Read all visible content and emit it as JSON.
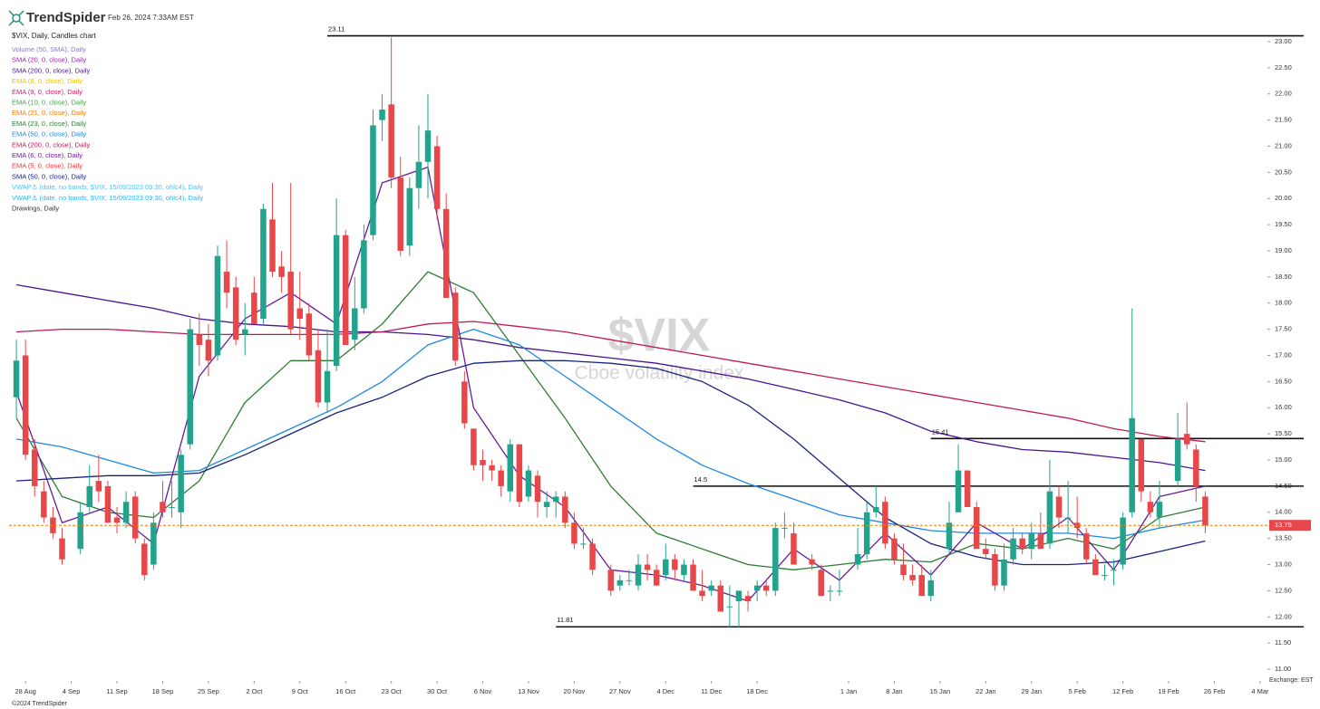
{
  "header": {
    "brand": "TrendSpider",
    "timestamp": "Feb 26, 2024 7:33AM EST",
    "footer": "©2024 TrendSpider",
    "exchange": "Exchange: EST"
  },
  "chart_data": {
    "type": "candlestick",
    "title": "$VIX, Daily, Candles chart",
    "watermark": "$VIX",
    "watermark_subtitle": "Cboe volatility index",
    "up_color": "#22a38c",
    "down_color": "#e8474a",
    "xlim": [
      -0.8,
      136.8
    ],
    "ylim": [
      10.9,
      23.15
    ],
    "grid": false,
    "xticks": [
      {
        "value": 1,
        "label": "28 Aug"
      },
      {
        "value": 6,
        "label": "4 Sep"
      },
      {
        "value": 11,
        "label": "11 Sep"
      },
      {
        "value": 16,
        "label": "18 Sep"
      },
      {
        "value": 21,
        "label": "25 Sep"
      },
      {
        "value": 26,
        "label": "2 Oct"
      },
      {
        "value": 31,
        "label": "9 Oct"
      },
      {
        "value": 36,
        "label": "16 Oct"
      },
      {
        "value": 41,
        "label": "23 Oct"
      },
      {
        "value": 46,
        "label": "30 Oct"
      },
      {
        "value": 51,
        "label": "6 Nov"
      },
      {
        "value": 56,
        "label": "13 Nov"
      },
      {
        "value": 61,
        "label": "20 Nov"
      },
      {
        "value": 66,
        "label": "27 Nov"
      },
      {
        "value": 71,
        "label": "4 Dec"
      },
      {
        "value": 76,
        "label": "11 Dec"
      },
      {
        "value": 81,
        "label": "18 Dec"
      },
      {
        "value": 91,
        "label": "1 Jan"
      },
      {
        "value": 96,
        "label": "8 Jan"
      },
      {
        "value": 101,
        "label": "15 Jan"
      },
      {
        "value": 106,
        "label": "22 Jan"
      },
      {
        "value": 111,
        "label": "29 Jan"
      },
      {
        "value": 116,
        "label": "5 Feb"
      },
      {
        "value": 121,
        "label": "12 Feb"
      },
      {
        "value": 126,
        "label": "19 Feb"
      },
      {
        "value": 131,
        "label": "26 Feb"
      },
      {
        "value": 136,
        "label": "4 Mar"
      }
    ],
    "yticks": [
      {
        "value": 11,
        "label": "11.00"
      },
      {
        "value": 11.5,
        "label": "11.50"
      },
      {
        "value": 12,
        "label": "12.00"
      },
      {
        "value": 12.5,
        "label": "12.50"
      },
      {
        "value": 13,
        "label": "13.00"
      },
      {
        "value": 13.5,
        "label": "13.50"
      },
      {
        "value": 14,
        "label": "14.00"
      },
      {
        "value": 14.5,
        "label": "14.50"
      },
      {
        "value": 15,
        "label": "15.00"
      },
      {
        "value": 15.5,
        "label": "15.50"
      },
      {
        "value": 16,
        "label": "16.00"
      },
      {
        "value": 16.5,
        "label": "16.50"
      },
      {
        "value": 17,
        "label": "17.00"
      },
      {
        "value": 17.5,
        "label": "17.50"
      },
      {
        "value": 18,
        "label": "18.00"
      },
      {
        "value": 18.5,
        "label": "18.50"
      },
      {
        "value": 19,
        "label": "19.00"
      },
      {
        "value": 19.5,
        "label": "19.50"
      },
      {
        "value": 20,
        "label": "20.00"
      },
      {
        "value": 20.5,
        "label": "20.50"
      },
      {
        "value": 21,
        "label": "21.00"
      },
      {
        "value": 21.5,
        "label": "21.50"
      },
      {
        "value": 22,
        "label": "22.00"
      },
      {
        "value": 22.5,
        "label": "22.50"
      },
      {
        "value": 23,
        "label": "23.00"
      }
    ],
    "x": [
      0,
      1,
      2,
      3,
      4,
      5,
      7,
      8,
      9,
      10,
      11,
      12,
      13,
      14,
      15,
      16,
      17,
      18,
      19,
      20,
      21,
      22,
      23,
      24,
      25,
      26,
      27,
      28,
      29,
      30,
      31,
      32,
      33,
      34,
      35,
      36,
      37,
      38,
      39,
      40,
      41,
      42,
      43,
      44,
      45,
      46,
      47,
      48,
      49,
      50,
      51,
      52,
      53,
      54,
      55,
      56,
      57,
      58,
      59,
      60,
      61,
      62,
      63,
      65,
      66,
      67,
      68,
      69,
      70,
      71,
      72,
      73,
      74,
      75,
      76,
      77,
      78,
      79,
      80,
      81,
      82,
      83,
      84,
      85,
      87,
      88,
      89,
      90,
      92,
      93,
      94,
      95,
      96,
      97,
      98,
      99,
      100,
      102,
      103,
      104,
      105,
      106,
      107,
      108,
      109,
      110,
      111,
      112,
      113,
      114,
      115,
      116,
      117,
      118,
      119,
      120,
      121,
      122,
      123,
      124,
      125,
      127,
      128,
      129,
      130
    ],
    "open": [
      16.2,
      17.0,
      15.2,
      14.4,
      13.9,
      13.5,
      13.3,
      14.1,
      14.6,
      14.5,
      13.9,
      13.8,
      14.3,
      13.4,
      13.0,
      14.2,
      14.1,
      14.0,
      15.3,
      17.4,
      17.3,
      17.0,
      18.6,
      18.3,
      17.4,
      18.2,
      17.7,
      19.6,
      18.7,
      18.6,
      17.9,
      17.8,
      17.1,
      16.1,
      16.8,
      19.3,
      17.3,
      17.9,
      19.3,
      21.5,
      21.8,
      20.4,
      19.1,
      20.2,
      20.7,
      21.0,
      19.8,
      18.2,
      16.5,
      15.6,
      15.0,
      14.9,
      14.8,
      14.4,
      15.3,
      14.3,
      14.7,
      14.1,
      14.2,
      14.3,
      13.8,
      13.4,
      13.4,
      12.9,
      12.6,
      12.7,
      12.6,
      13.0,
      12.9,
      12.8,
      13.1,
      12.8,
      13.0,
      12.5,
      12.5,
      12.6,
      12.2,
      12.3,
      12.4,
      12.5,
      12.6,
      12.5,
      13.7,
      13.6,
      13.1,
      12.9,
      12.5,
      12.5,
      13.0,
      13.2,
      14.0,
      14.2,
      13.5,
      13.0,
      12.8,
      12.8,
      12.4,
      13.3,
      14.0,
      14.8,
      14.1,
      13.3,
      13.2,
      12.6,
      13.1,
      13.5,
      13.3,
      13.6,
      13.4,
      14.3,
      13.9,
      13.8,
      13.6,
      13.1,
      12.8,
      12.9,
      13.0,
      14.0,
      15.4,
      14.2,
      13.9,
      14.6,
      15.5,
      15.2,
      14.3
    ],
    "high": [
      17.3,
      17.3,
      15.4,
      14.6,
      14.1,
      13.7,
      14.2,
      14.9,
      15.1,
      14.6,
      14.1,
      14.4,
      14.4,
      13.5,
      14.0,
      14.6,
      14.6,
      15.2,
      17.7,
      17.8,
      17.6,
      19.1,
      19.2,
      18.5,
      18.0,
      18.5,
      19.9,
      20.3,
      19.0,
      20.3,
      18.6,
      18.0,
      17.5,
      17.5,
      20.0,
      19.4,
      18.5,
      19.5,
      21.7,
      22.0,
      23.08,
      20.8,
      20.4,
      21.4,
      22.0,
      21.2,
      20.1,
      18.3,
      16.7,
      15.6,
      15.2,
      15.0,
      14.9,
      15.4,
      15.3,
      14.9,
      14.8,
      14.4,
      14.4,
      14.4,
      14.0,
      13.7,
      13.5,
      13.0,
      12.8,
      12.9,
      13.2,
      13.2,
      13.0,
      13.4,
      13.2,
      13.1,
      13.1,
      12.9,
      12.7,
      12.7,
      12.6,
      12.5,
      12.5,
      12.7,
      12.7,
      13.8,
      14.0,
      13.8,
      13.2,
      13.0,
      12.6,
      12.9,
      13.7,
      14.2,
      14.5,
      14.3,
      13.6,
      13.4,
      13.0,
      13.0,
      12.9,
      14.2,
      15.3,
      14.8,
      14.2,
      13.5,
      13.3,
      13.4,
      13.7,
      13.6,
      13.8,
      14.0,
      15.0,
      14.5,
      14.6,
      14.3,
      13.7,
      13.2,
      13.0,
      13.1,
      14.0,
      17.9,
      15.4,
      14.4,
      14.6,
      15.9,
      16.1,
      15.3,
      14.4
    ],
    "low": [
      15.8,
      15.0,
      14.3,
      13.8,
      13.5,
      13.0,
      13.2,
      14.0,
      14.2,
      13.8,
      13.6,
      13.7,
      13.4,
      12.7,
      12.9,
      13.9,
      13.9,
      13.7,
      15.2,
      16.8,
      16.6,
      16.9,
      17.9,
      17.2,
      17.0,
      17.6,
      17.6,
      18.5,
      18.2,
      17.4,
      17.3,
      16.9,
      16.0,
      15.9,
      16.7,
      17.2,
      17.1,
      17.8,
      19.2,
      21.1,
      20.2,
      18.9,
      18.9,
      19.8,
      20.0,
      19.6,
      18.1,
      16.8,
      15.6,
      14.8,
      14.6,
      14.6,
      14.3,
      14.2,
      14.1,
      14.2,
      13.9,
      13.9,
      13.9,
      13.7,
      13.3,
      13.3,
      12.8,
      12.4,
      12.5,
      12.6,
      12.5,
      12.7,
      12.6,
      12.7,
      12.7,
      12.7,
      12.5,
      12.3,
      12.4,
      12.1,
      11.8,
      11.8,
      12.1,
      12.3,
      12.4,
      12.4,
      13.5,
      13.0,
      12.9,
      12.4,
      12.3,
      12.4,
      12.9,
      13.1,
      13.9,
      13.3,
      13.0,
      12.7,
      12.6,
      12.4,
      12.3,
      13.2,
      14.0,
      14.1,
      13.3,
      13.1,
      12.5,
      12.5,
      13.0,
      13.2,
      13.1,
      13.3,
      13.3,
      13.7,
      13.6,
      13.5,
      13.0,
      12.8,
      12.7,
      12.6,
      12.9,
      13.9,
      14.2,
      13.9,
      13.7,
      14.5,
      15.2,
      14.2,
      13.6
    ],
    "close": [
      16.9,
      15.1,
      14.5,
      13.9,
      13.6,
      13.1,
      14.0,
      14.5,
      14.4,
      13.8,
      13.8,
      14.2,
      13.5,
      12.8,
      13.8,
      14.0,
      14.1,
      15.1,
      17.5,
      17.2,
      16.9,
      18.9,
      18.2,
      17.3,
      17.5,
      17.6,
      19.8,
      18.6,
      18.5,
      17.5,
      17.7,
      17.0,
      16.1,
      16.7,
      19.3,
      17.2,
      17.9,
      19.2,
      21.4,
      21.7,
      20.4,
      19.0,
      20.2,
      20.7,
      21.3,
      19.8,
      18.1,
      16.9,
      15.7,
      14.9,
      14.9,
      14.8,
      14.5,
      15.3,
      14.2,
      14.8,
      14.2,
      14.2,
      14.3,
      13.8,
      13.4,
      13.4,
      12.9,
      12.5,
      12.7,
      12.7,
      13.0,
      12.9,
      12.6,
      13.1,
      12.9,
      13.0,
      12.5,
      12.4,
      12.6,
      12.1,
      12.2,
      12.5,
      12.3,
      12.6,
      12.5,
      13.7,
      13.7,
      13.0,
      13.0,
      12.4,
      12.5,
      12.5,
      13.2,
      14.0,
      14.1,
      13.4,
      13.1,
      12.8,
      12.7,
      12.4,
      12.7,
      13.8,
      14.8,
      14.1,
      13.3,
      13.2,
      12.6,
      13.1,
      13.5,
      13.3,
      13.6,
      13.3,
      14.4,
      13.9,
      13.9,
      13.7,
      13.1,
      12.8,
      12.8,
      12.9,
      13.9,
      15.8,
      14.4,
      14.0,
      14.2,
      15.4,
      15.3,
      14.5,
      13.75
    ],
    "last_price_color": "#f57c00",
    "levels": [
      {
        "value": 23.11,
        "start": 34
      },
      {
        "value": 15.41,
        "start": 100
      },
      {
        "value": 14.5,
        "start": 74
      },
      {
        "value": 11.81,
        "start": 59
      }
    ],
    "series": [
      {
        "name": "Volume (50, SMA), Daily",
        "color": "#8e7cc3"
      },
      {
        "name": "SMA (20, 0, close), Daily",
        "color": "#9c27b0"
      },
      {
        "name": "SMA (200, 0, close), Daily",
        "color": "#4a148c",
        "x": [
          0,
          5,
          10,
          15,
          20,
          25,
          30,
          35,
          40,
          45,
          50,
          55,
          60,
          65,
          70,
          75,
          80,
          85,
          90,
          95,
          100,
          105,
          110,
          115,
          120,
          125,
          130
        ],
        "values": [
          18.35,
          18.2,
          18.05,
          17.9,
          17.7,
          17.6,
          17.55,
          17.45,
          17.45,
          17.4,
          17.3,
          17.15,
          17.05,
          16.95,
          16.85,
          16.7,
          16.55,
          16.35,
          16.15,
          15.9,
          15.55,
          15.35,
          15.2,
          15.15,
          15.05,
          14.95,
          14.8
        ]
      },
      {
        "name": "EMA (8, 0, close), Daily",
        "color": "#f2c200"
      },
      {
        "name": "EMA (9, 0, close), Daily",
        "color": "#d81b60"
      },
      {
        "name": "EMA (10, 0, close), Daily",
        "color": "#43a047"
      },
      {
        "name": "EMA (21, 0, close), Daily",
        "color": "#f57c00"
      },
      {
        "name": "EMA (23, 0, close), Daily",
        "color": "#2e7d32",
        "x": [
          0,
          5,
          10,
          15,
          20,
          25,
          30,
          35,
          40,
          45,
          50,
          55,
          60,
          65,
          70,
          75,
          80,
          85,
          90,
          95,
          100,
          105,
          110,
          115,
          120,
          125,
          130
        ],
        "values": [
          15.8,
          14.3,
          14.0,
          13.9,
          14.6,
          16.1,
          16.9,
          16.9,
          17.6,
          18.6,
          18.2,
          17.0,
          15.8,
          14.5,
          13.6,
          13.3,
          13.0,
          12.9,
          13.0,
          13.1,
          13.05,
          13.4,
          13.3,
          13.5,
          13.3,
          13.9,
          14.1
        ]
      },
      {
        "name": "EMA (50, 0, close), Daily",
        "color": "#1e88e5",
        "x": [
          0,
          5,
          10,
          15,
          20,
          25,
          30,
          35,
          40,
          45,
          50,
          55,
          60,
          65,
          70,
          75,
          80,
          85,
          90,
          95,
          100,
          105,
          110,
          115,
          120,
          125,
          130
        ],
        "values": [
          15.4,
          15.25,
          15.0,
          14.75,
          14.8,
          15.2,
          15.6,
          16.0,
          16.5,
          17.2,
          17.5,
          17.2,
          16.6,
          16.0,
          15.4,
          14.9,
          14.55,
          14.25,
          13.95,
          13.8,
          13.65,
          13.6,
          13.6,
          13.6,
          13.5,
          13.7,
          13.85
        ]
      },
      {
        "name": "EMA (200, 0, close), Daily",
        "color": "#c2185b",
        "x": [
          0,
          5,
          10,
          15,
          20,
          25,
          30,
          35,
          40,
          45,
          50,
          55,
          60,
          65,
          70,
          75,
          80,
          85,
          90,
          95,
          100,
          105,
          110,
          115,
          120,
          125,
          130
        ],
        "values": [
          17.45,
          17.5,
          17.5,
          17.45,
          17.4,
          17.4,
          17.4,
          17.4,
          17.45,
          17.6,
          17.65,
          17.55,
          17.45,
          17.3,
          17.15,
          17.0,
          16.85,
          16.7,
          16.55,
          16.4,
          16.25,
          16.1,
          15.95,
          15.8,
          15.6,
          15.45,
          15.35
        ]
      },
      {
        "name": "EMA (6, 0, close), Daily",
        "color": "#6a1b9a",
        "x": [
          0,
          5,
          10,
          15,
          20,
          25,
          30,
          35,
          40,
          45,
          50,
          55,
          60,
          65,
          70,
          75,
          80,
          85,
          90,
          95,
          100,
          105,
          110,
          115,
          120,
          125,
          130
        ],
        "values": [
          16.3,
          13.8,
          14.1,
          13.4,
          16.6,
          17.7,
          18.2,
          17.6,
          20.3,
          20.6,
          16.0,
          14.7,
          14.1,
          12.9,
          12.8,
          12.6,
          12.3,
          13.3,
          12.7,
          13.6,
          12.8,
          13.8,
          13.3,
          13.9,
          12.9,
          14.3,
          14.5
        ]
      },
      {
        "name": "EMA (5, 0, close), Daily",
        "color": "#e53935"
      },
      {
        "name": "SMA (50, 0, close), Daily",
        "color": "#1a237e",
        "x": [
          0,
          5,
          10,
          15,
          20,
          25,
          30,
          35,
          40,
          45,
          50,
          55,
          60,
          65,
          70,
          75,
          80,
          85,
          90,
          95,
          100,
          105,
          110,
          115,
          120,
          125,
          130
        ],
        "values": [
          14.6,
          14.65,
          14.7,
          14.7,
          14.75,
          15.1,
          15.5,
          15.9,
          16.2,
          16.6,
          16.85,
          16.9,
          16.9,
          16.85,
          16.75,
          16.5,
          16.05,
          15.4,
          14.65,
          13.9,
          13.4,
          13.15,
          13.0,
          13.0,
          13.05,
          13.25,
          13.45
        ]
      },
      {
        "name": "VWAP⚓ (date, no bands, $VIX, 15/09/2023 09:30, ohlc4), Daily",
        "color": "#4fc3f7"
      },
      {
        "name": "VWAP⚓ (date, no bands, $VIX, 15/09/2023 09:30, ohlc4), Daily",
        "color": "#29b6f6"
      },
      {
        "name": "Drawings, Daily",
        "color": "#333333"
      }
    ]
  }
}
